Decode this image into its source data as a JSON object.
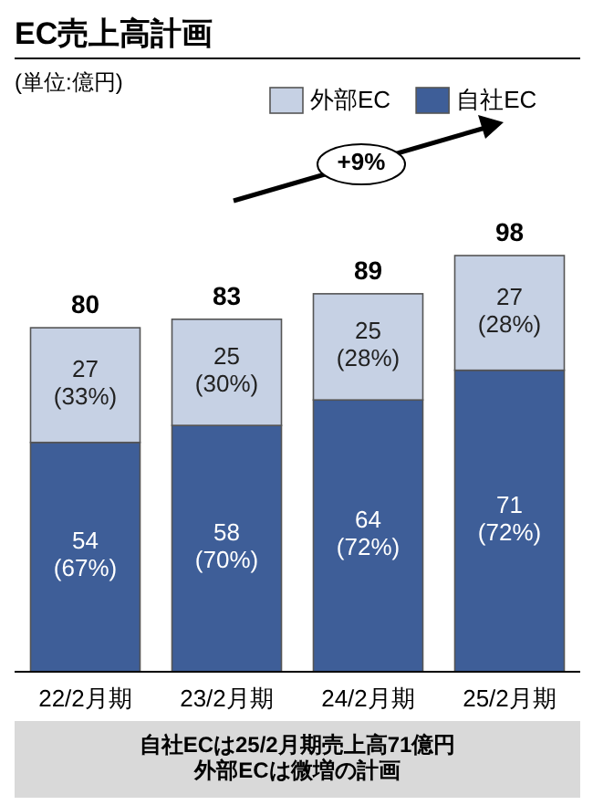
{
  "chart_data": {
    "type": "bar",
    "title": "EC売上高計画",
    "subtitle": "(単位:億円)",
    "stacked": true,
    "legend": "top right",
    "categories": [
      "22/2月期",
      "23/2月期",
      "24/2月期",
      "25/2月期"
    ],
    "series": [
      {
        "name": "自社EC",
        "color": "#3e5e98",
        "values": [
          54,
          58,
          64,
          71
        ],
        "value_labels": [
          "54\n(67%)",
          "58\n(70%)",
          "64\n(72%)",
          "71\n(72%)"
        ]
      },
      {
        "name": "外部EC",
        "color": "#c6d1e4",
        "values": [
          27,
          25,
          25,
          27
        ],
        "value_labels": [
          "27\n(33%)",
          "25\n(30%)",
          "25\n(28%)",
          "27\n(28%)"
        ]
      }
    ],
    "totals": [
      "80",
      "83",
      "89",
      "98"
    ],
    "annotations": [
      "+9%",
      "自社ECは25/2月期売上高71億円",
      "外部ECは微増の計画"
    ]
  }
}
